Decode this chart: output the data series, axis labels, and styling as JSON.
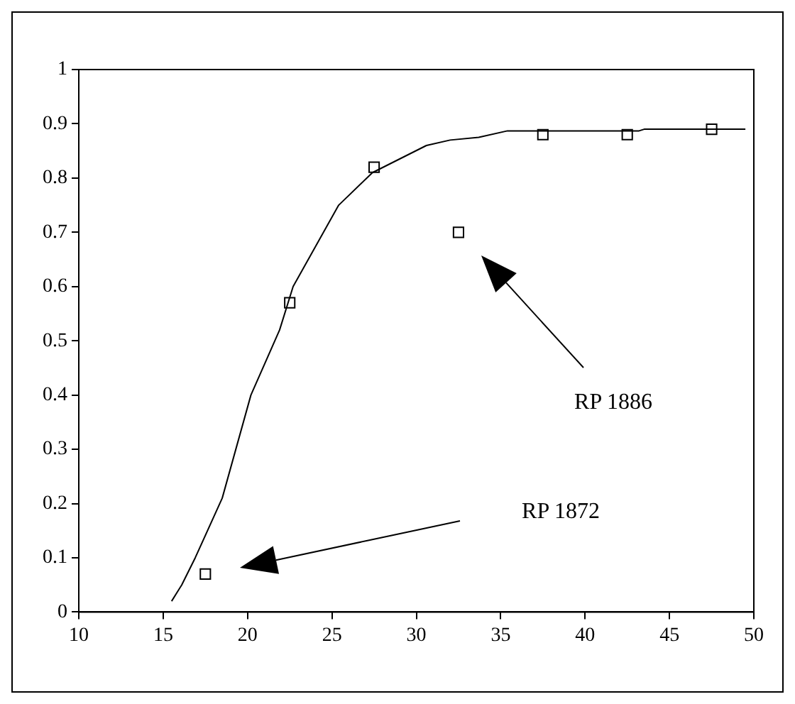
{
  "chart_data": {
    "type": "scatter",
    "xlim": [
      10,
      50
    ],
    "xticks": [
      10,
      15,
      20,
      25,
      30,
      35,
      40,
      45,
      50
    ],
    "ylim": [
      0,
      1
    ],
    "yticks": [
      0,
      0.1,
      0.2,
      0.3,
      0.4,
      0.5,
      0.6,
      0.7,
      0.8,
      0.9,
      1
    ],
    "grid": false,
    "legend": false,
    "series": [
      {
        "type": "line",
        "color": "#000000",
        "marker": "none",
        "x": [
          15.5,
          16.1,
          16.9,
          18.5,
          20.2,
          21.9,
          22.7,
          25.4,
          27.4,
          30.6,
          32,
          33.7,
          35.4,
          40,
          43.2,
          43.5,
          49.5
        ],
        "values": [
          0.02,
          0.05,
          0.1,
          0.21,
          0.4,
          0.52,
          0.6,
          0.75,
          0.81,
          0.86,
          0.87,
          0.875,
          0.887,
          0.887,
          0.887,
          0.89,
          0.89
        ]
      },
      {
        "type": "scatter",
        "color": "#000000",
        "marker": "square",
        "x": [
          17.5,
          22.5,
          27.5,
          32.5,
          37.5,
          42.5,
          47.5
        ],
        "values": [
          0.07,
          0.57,
          0.82,
          0.7,
          0.88,
          0.88,
          0.89
        ]
      }
    ],
    "annotations": [
      "RP 1886",
      "RP 1872"
    ]
  }
}
